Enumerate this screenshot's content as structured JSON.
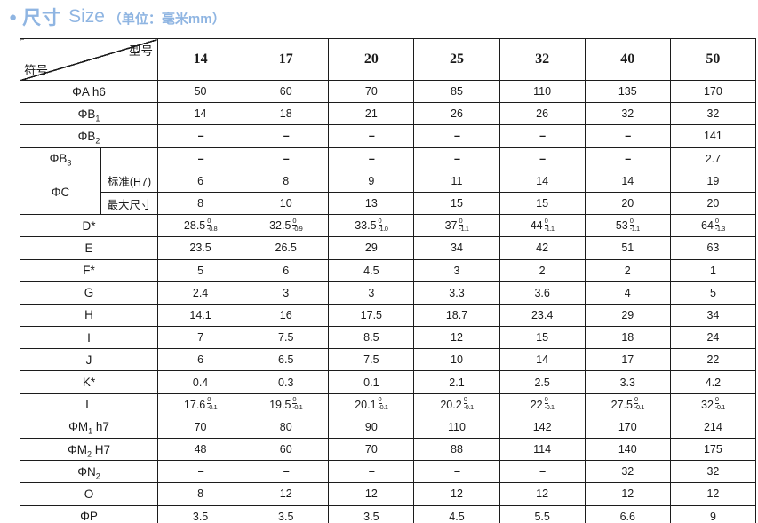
{
  "title": {
    "bullet": "●",
    "cn": "尺寸",
    "en": "Size",
    "unit": "（单位：毫米mm）",
    "accent_color": "#8fb5e2"
  },
  "table": {
    "corner": {
      "top_right": "型号",
      "bottom_left": "符号"
    },
    "models": [
      "14",
      "17",
      "20",
      "25",
      "32",
      "40",
      "50"
    ],
    "rows": [
      {
        "label": {
          "pre": "ΦA",
          "sub": "",
          "post": " h6"
        },
        "values": [
          "50",
          "60",
          "70",
          "85",
          "110",
          "135",
          "170"
        ]
      },
      {
        "label": {
          "pre": "ΦB",
          "sub": "1",
          "post": ""
        },
        "values": [
          "14",
          "18",
          "21",
          "26",
          "26",
          "32",
          "32"
        ]
      },
      {
        "label": {
          "pre": "ΦB",
          "sub": "2",
          "post": ""
        },
        "values": [
          "–",
          "–",
          "–",
          "–",
          "–",
          "–",
          "141"
        ]
      },
      {
        "label": {
          "pre": "ΦB",
          "sub": "3",
          "post": ""
        },
        "empty_subcell": true,
        "values": [
          "–",
          "–",
          "–",
          "–",
          "–",
          "–",
          "2.7"
        ]
      },
      {
        "label": {
          "pre": "ΦC",
          "sub": "",
          "post": ""
        },
        "subrows": [
          {
            "sublabel": "标准(H7)",
            "values": [
              "6",
              "8",
              "9",
              "11",
              "14",
              "14",
              "19"
            ]
          },
          {
            "sublabel": "最大尺寸",
            "values": [
              "8",
              "10",
              "13",
              "15",
              "15",
              "20",
              "20"
            ]
          }
        ]
      },
      {
        "label": {
          "pre": "D*",
          "sub": "",
          "post": ""
        },
        "values": [
          {
            "v": "28.5",
            "t": "0",
            "b": "-0.8"
          },
          {
            "v": "32.5",
            "t": "0",
            "b": "-0.9"
          },
          {
            "v": "33.5",
            "t": "0",
            "b": "-1.0"
          },
          {
            "v": "37",
            "t": "0",
            "b": "-1.1"
          },
          {
            "v": "44",
            "t": "0",
            "b": "-1.1"
          },
          {
            "v": "53",
            "t": "0",
            "b": "-1.1"
          },
          {
            "v": "64",
            "t": "0",
            "b": "-1.3"
          }
        ]
      },
      {
        "label": {
          "pre": "E",
          "sub": "",
          "post": ""
        },
        "values": [
          "23.5",
          "26.5",
          "29",
          "34",
          "42",
          "51",
          "63"
        ]
      },
      {
        "label": {
          "pre": "F*",
          "sub": "",
          "post": ""
        },
        "values": [
          "5",
          "6",
          "4.5",
          "3",
          "2",
          "2",
          "1"
        ]
      },
      {
        "label": {
          "pre": "G",
          "sub": "",
          "post": ""
        },
        "values": [
          "2.4",
          "3",
          "3",
          "3.3",
          "3.6",
          "4",
          "5"
        ]
      },
      {
        "label": {
          "pre": "H",
          "sub": "",
          "post": ""
        },
        "values": [
          "14.1",
          "16",
          "17.5",
          "18.7",
          "23.4",
          "29",
          "34"
        ]
      },
      {
        "label": {
          "pre": "I",
          "sub": "",
          "post": ""
        },
        "values": [
          "7",
          "7.5",
          "8.5",
          "12",
          "15",
          "18",
          "24"
        ]
      },
      {
        "label": {
          "pre": "J",
          "sub": "",
          "post": ""
        },
        "values": [
          "6",
          "6.5",
          "7.5",
          "10",
          "14",
          "17",
          "22"
        ]
      },
      {
        "label": {
          "pre": "K*",
          "sub": "",
          "post": ""
        },
        "values": [
          "0.4",
          "0.3",
          "0.1",
          "2.1",
          "2.5",
          "3.3",
          "4.2"
        ]
      },
      {
        "label": {
          "pre": "L",
          "sub": "",
          "post": ""
        },
        "values": [
          {
            "v": "17.6",
            "t": "0",
            "b": "-0.1"
          },
          {
            "v": "19.5",
            "t": "0",
            "b": "-0.1"
          },
          {
            "v": "20.1",
            "t": "0",
            "b": "-0.1"
          },
          {
            "v": "20.2",
            "t": "0",
            "b": "-0.1"
          },
          {
            "v": "22",
            "t": "0",
            "b": "-0.1"
          },
          {
            "v": "27.5",
            "t": "0",
            "b": "-0.1"
          },
          {
            "v": "32",
            "t": "0",
            "b": "-0.1"
          }
        ]
      },
      {
        "label": {
          "pre": "ΦM",
          "sub": "1",
          "post": " h7"
        },
        "values": [
          "70",
          "80",
          "90",
          "110",
          "142",
          "170",
          "214"
        ]
      },
      {
        "label": {
          "pre": "ΦM",
          "sub": "2",
          "post": " H7"
        },
        "values": [
          "48",
          "60",
          "70",
          "88",
          "114",
          "140",
          "175"
        ]
      },
      {
        "label": {
          "pre": "ΦN",
          "sub": "2",
          "post": ""
        },
        "values": [
          "–",
          "–",
          "–",
          "–",
          "–",
          "32",
          "32"
        ]
      },
      {
        "label": {
          "pre": "O",
          "sub": "",
          "post": ""
        },
        "values": [
          "8",
          "12",
          "12",
          "12",
          "12",
          "12",
          "12"
        ]
      },
      {
        "label": {
          "pre": "ΦP",
          "sub": "",
          "post": ""
        },
        "values": [
          "3.5",
          "3.5",
          "3.5",
          "4.5",
          "5.5",
          "6.6",
          "9"
        ]
      }
    ]
  }
}
